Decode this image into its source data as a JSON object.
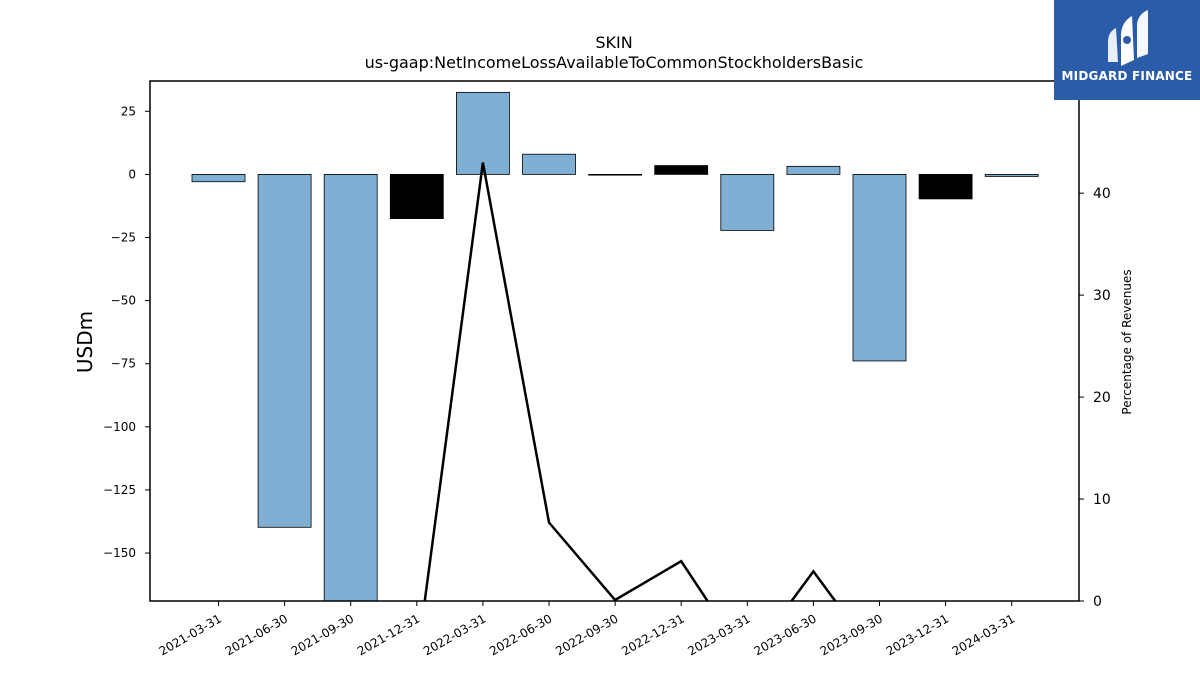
{
  "chart_data": {
    "type": "bar",
    "title": "SKIN",
    "subtitle": "us-gaap:NetIncomeLossAvailableToCommonStockholdersBasic",
    "ylabel": "USDm",
    "ylabel_right": "Percentage of Revenues",
    "categories": [
      "2021-03-31",
      "2021-06-30",
      "2021-09-30",
      "2021-12-31",
      "2022-03-31",
      "2022-06-30",
      "2022-09-30",
      "2022-12-31",
      "2023-03-31",
      "2023-06-30",
      "2023-09-30",
      "2023-12-31",
      "2024-03-31"
    ],
    "values": [
      -2.9,
      -139.8,
      -169,
      -17.5,
      32.5,
      8.0,
      -0.3,
      3.5,
      -22.2,
      3.2,
      -73.9,
      -9.7,
      -0.8
    ],
    "bar_colors": [
      "#7fb0d4",
      "#7fb0d4",
      "#7fb0d4",
      "#000000",
      "#7fb0d4",
      "#7fb0d4",
      "#000000",
      "#000000",
      "#7fb0d4",
      "#7fb0d4",
      "#7fb0d4",
      "#000000",
      "#7fb0d4"
    ],
    "ylim": [
      -169,
      37
    ],
    "yticks": [
      25,
      0,
      -25,
      -50,
      -75,
      -100,
      -125,
      -150
    ],
    "ytick_labels": [
      "25",
      "0",
      "−25",
      "−50",
      "−75",
      "−100",
      "−125",
      "−150"
    ],
    "line_series": {
      "values": [
        null,
        null,
        null,
        null,
        43,
        7.7,
        0.1,
        3.9,
        null,
        2.9,
        null,
        null,
        null
      ],
      "ylim": [
        0,
        51
      ],
      "yticks": [
        0,
        10,
        20,
        30,
        40
      ],
      "ytick_labels": [
        "0",
        "10",
        "20",
        "30",
        "40"
      ]
    },
    "grid": false,
    "legend": "none"
  },
  "logo": {
    "text": "MIDGARD FINANCE",
    "bg": "#2a5caa"
  }
}
